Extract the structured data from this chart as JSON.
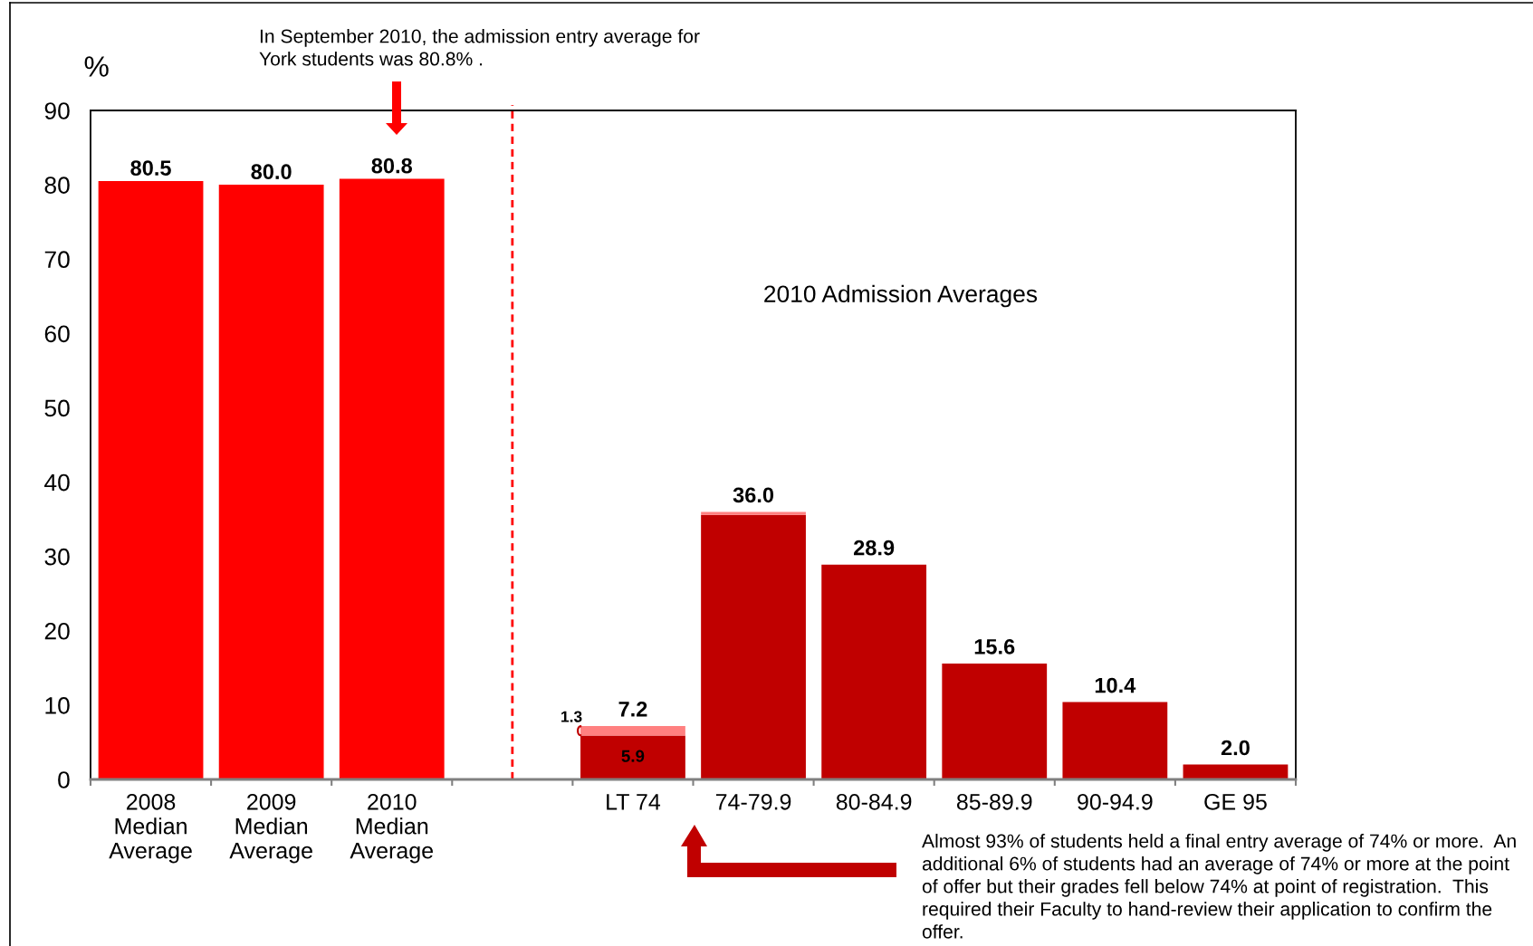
{
  "chart_data": {
    "type": "bar",
    "stacked": true,
    "categories": [
      "2008\nMedian\nAverage",
      "2009\nMedian\nAverage",
      "2010\nMedian\nAverage",
      null,
      "LT 74",
      "74-79.9",
      "80-84.9",
      "85-89.9",
      "90-94.9",
      "GE 95"
    ],
    "series": [
      {
        "color": "#ff0000",
        "values": [
          80.5,
          80.0,
          80.8,
          null,
          null,
          null,
          null,
          null,
          null,
          null
        ],
        "value_labels": [
          "80.5",
          "80.0",
          "80.8",
          null,
          null,
          null,
          null,
          null,
          null,
          null
        ]
      },
      {
        "color": "#c00000",
        "values": [
          null,
          null,
          null,
          null,
          5.9,
          35.6,
          28.9,
          15.6,
          10.4,
          2.0
        ],
        "value_labels": [
          null,
          null,
          null,
          null,
          "5.9",
          null,
          null,
          null,
          null,
          null
        ]
      },
      {
        "color": "#ff8080",
        "values": [
          null,
          null,
          null,
          null,
          1.3,
          0.4,
          null,
          null,
          null,
          null
        ],
        "value_labels": [
          null,
          null,
          null,
          null,
          "1.3",
          null,
          null,
          null,
          null,
          null
        ]
      }
    ],
    "totals": [
      null,
      null,
      null,
      null,
      "7.2",
      "36.0",
      "28.9",
      "15.6",
      "10.4",
      "2.0"
    ],
    "ylabel": "%",
    "ylim": [
      0,
      90
    ],
    "yticks": [
      0,
      10,
      20,
      30,
      40,
      50,
      60,
      70,
      80,
      90
    ],
    "annotations": [
      "In September 2010, the admission entry average for\nYork students was 80.8% .",
      "2010 Admission Averages",
      "Almost 93% of students held a final entry average of 74% or more.  An\nadditional 6% of students had an average of 74% or more at the point\nof offer but their grades fell below 74% at point of registration.  This\nrequired their Faculty to hand-review their application to confirm the\noffer."
    ]
  }
}
